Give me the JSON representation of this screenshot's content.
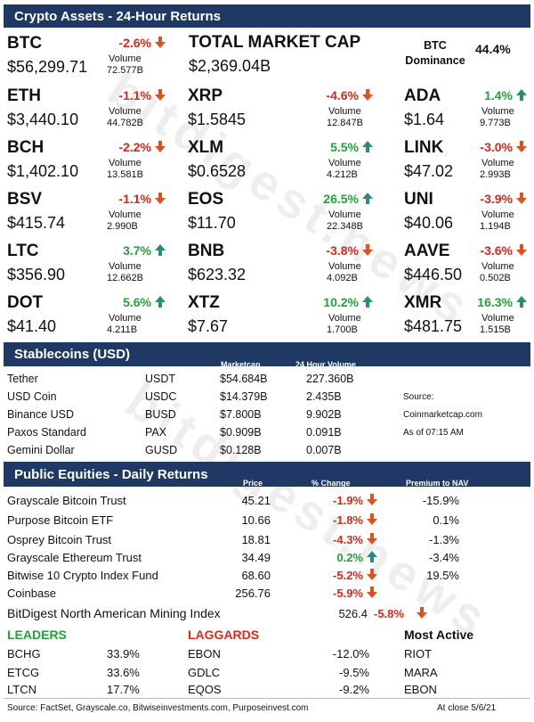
{
  "header1": "Crypto Assets - 24-Hour Returns",
  "coins": [
    {
      "sym": "BTC",
      "pct": "-2.6%",
      "dir": "down",
      "price": "$56,299.71",
      "vlabel": "Volume",
      "vol": "72.577B",
      "col": 0,
      "row": 0
    },
    {
      "sym": "ETH",
      "pct": "-1.1%",
      "dir": "down",
      "price": "$3,440.10",
      "vlabel": "Volume",
      "vol": "44.782B",
      "col": 0,
      "row": 1
    },
    {
      "sym": "XRP",
      "pct": "-4.6%",
      "dir": "down",
      "price": "$1.5845",
      "vlabel": "Volume",
      "vol": "12.847B",
      "col": 1,
      "row": 1
    },
    {
      "sym": "ADA",
      "pct": "1.4%",
      "dir": "up",
      "price": "$1.64",
      "vlabel": "Volume",
      "vol": "9.773B",
      "col": 2,
      "row": 1
    },
    {
      "sym": "BCH",
      "pct": "-2.2%",
      "dir": "down",
      "price": "$1,402.10",
      "vlabel": "Volume",
      "vol": "13.581B",
      "col": 0,
      "row": 2
    },
    {
      "sym": "XLM",
      "pct": "5.5%",
      "dir": "up",
      "price": "$0.6528",
      "vlabel": "Volume",
      "vol": "4.212B",
      "col": 1,
      "row": 2
    },
    {
      "sym": "LINK",
      "pct": "-3.0%",
      "dir": "down",
      "price": "$47.02",
      "vlabel": "Volume",
      "vol": "2.993B",
      "col": 2,
      "row": 2
    },
    {
      "sym": "BSV",
      "pct": "-1.1%",
      "dir": "down",
      "price": "$415.74",
      "vlabel": "Volume",
      "vol": "2.990B",
      "col": 0,
      "row": 3
    },
    {
      "sym": "EOS",
      "pct": "26.5%",
      "dir": "up",
      "price": "$11.70",
      "vlabel": "Volume",
      "vol": "22.348B",
      "col": 1,
      "row": 3
    },
    {
      "sym": "UNI",
      "pct": "-3.9%",
      "dir": "down",
      "price": "$40.06",
      "vlabel": "Volume",
      "vol": "1.194B",
      "col": 2,
      "row": 3
    },
    {
      "sym": "LTC",
      "pct": "3.7%",
      "dir": "up",
      "price": "$356.90",
      "vlabel": "Volume",
      "vol": "12.662B",
      "col": 0,
      "row": 4
    },
    {
      "sym": "BNB",
      "pct": "-3.8%",
      "dir": "down",
      "price": "$623.32",
      "vlabel": "Volume",
      "vol": "4.092B",
      "col": 1,
      "row": 4
    },
    {
      "sym": "AAVE",
      "pct": "-3.6%",
      "dir": "down",
      "price": "$446.50",
      "vlabel": "Volume",
      "vol": "0.502B",
      "col": 2,
      "row": 4
    },
    {
      "sym": "DOT",
      "pct": "5.6%",
      "dir": "up",
      "price": "$41.40",
      "vlabel": "Volume",
      "vol": "4.211B",
      "col": 0,
      "row": 5
    },
    {
      "sym": "XTZ",
      "pct": "10.2%",
      "dir": "up",
      "price": "$7.67",
      "vlabel": "Volume",
      "vol": "1.700B",
      "col": 1,
      "row": 5
    },
    {
      "sym": "XMR",
      "pct": "16.3%",
      "dir": "up",
      "price": "$481.75",
      "vlabel": "Volume",
      "vol": "1.515B",
      "col": 2,
      "row": 5
    }
  ],
  "market_cap": {
    "label": "TOTAL MARKET CAP",
    "value": "$2,369.04B"
  },
  "dominance": {
    "label1": "BTC",
    "label2": "Dominance",
    "value": "44.4%"
  },
  "header2": "Stablecoins (USD)",
  "stable_cols": {
    "mcap": "Marketcap",
    "vol": "24 Hour Volume"
  },
  "stablecoins": [
    {
      "name": "Tether",
      "ticker": "USDT",
      "mcap": "$54.684B",
      "vol": "227.360B",
      "note": ""
    },
    {
      "name": "USD Coin",
      "ticker": "USDC",
      "mcap": "$14.379B",
      "vol": "2.435B",
      "note": "Source:"
    },
    {
      "name": "Binance USD",
      "ticker": "BUSD",
      "mcap": "$7.800B",
      "vol": "9.902B",
      "note": "Coinmarketcap.com"
    },
    {
      "name": "Paxos Standard",
      "ticker": "PAX",
      "mcap": "$0.909B",
      "vol": "0.091B",
      "note": "As of 07:15 AM"
    },
    {
      "name": "Gemini Dollar",
      "ticker": "GUSD",
      "mcap": "$0.128B",
      "vol": "0.007B",
      "note": ""
    }
  ],
  "header3": "Public Equities - Daily Returns",
  "eq_cols": {
    "price": "Price",
    "chg": "% Change",
    "nav": "Premium to NAV"
  },
  "equities": [
    {
      "name": "Grayscale Bitcoin Trust",
      "price": "45.21",
      "chg": "-1.9%",
      "dir": "down",
      "nav": "-15.9%"
    },
    {
      "name": "Purpose Bitcoin ETF",
      "price": "10.66",
      "chg": "-1.8%",
      "dir": "down",
      "nav": "0.1%"
    },
    {
      "name": "Osprey Bitcoin Trust",
      "price": "18.81",
      "chg": "-4.3%",
      "dir": "down",
      "nav": "-1.3%"
    },
    {
      "name": "Grayscale Ethereum Trust",
      "price": "34.49",
      "chg": "0.2%",
      "dir": "up",
      "nav": "-3.4%"
    },
    {
      "name": "Bitwise 10 Crypto Index Fund",
      "price": "68.60",
      "chg": "-5.2%",
      "dir": "down",
      "nav": "19.5%"
    },
    {
      "name": "Coinbase",
      "price": "256.76",
      "chg": "-5.9%",
      "dir": "down",
      "nav": ""
    }
  ],
  "mining": {
    "label": "BitDigest North American Mining Index",
    "value": "526.4",
    "chg": "-5.8%",
    "dir": "down"
  },
  "leaders_title": "LEADERS",
  "laggards_title": "LAGGARDS",
  "active_title": "Most Active",
  "movers": [
    {
      "lead": "BCHG",
      "lead_pct": "33.9%",
      "lag": "EBON",
      "lag_pct": "-12.0%",
      "active": "RIOT"
    },
    {
      "lead": "ETCG",
      "lead_pct": "33.6%",
      "lag": "GDLC",
      "lag_pct": "-9.5%",
      "active": "MARA"
    },
    {
      "lead": "LTCN",
      "lead_pct": "17.7%",
      "lag": "EQOS",
      "lag_pct": "-9.2%",
      "active": "EBON"
    }
  ],
  "footer_source": "Source: FactSet, Grayscale.co, Bitwiseinvestments.com, Purposeinvest.com",
  "footer_close": "At close  5/6/21",
  "watermark": "bitdigest.news",
  "colors": {
    "header": "#1f3864",
    "up": "#22a33a",
    "down": "#d42b1a",
    "up_arrow": "#2e8b7a",
    "down_arrow": "#d9531e"
  }
}
